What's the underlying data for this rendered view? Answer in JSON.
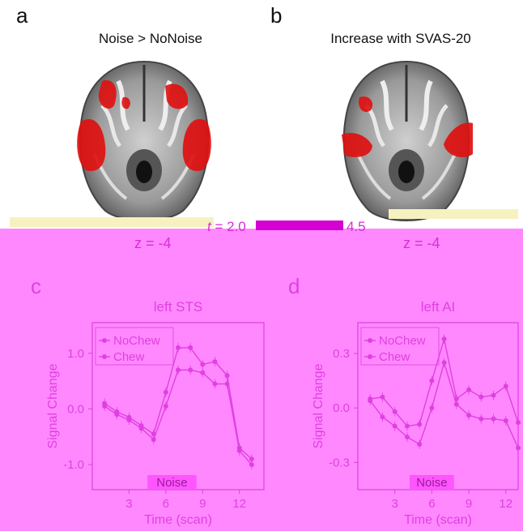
{
  "panels": {
    "a": {
      "letter": "a",
      "title": "Noise > NoNoise",
      "z_label": "z = -4"
    },
    "b": {
      "letter": "b",
      "title": "Increase with SVAS-20",
      "z_label": "z = -4"
    },
    "c": {
      "letter": "c"
    },
    "d": {
      "letter": "d"
    }
  },
  "colorbar": {
    "t_prefix": "t",
    "min_label": "= 2.0",
    "max_label": "4.5"
  },
  "colors": {
    "pink_bg": "#ff88ff",
    "series": "#e040e0",
    "activation": "#e01010"
  },
  "chart_data": [
    {
      "type": "line",
      "title": "left STS",
      "xlabel": "Time (scan)",
      "ylabel": "Signal Change",
      "xlim": [
        0,
        14
      ],
      "ylim": [
        -1.45,
        1.55
      ],
      "xticks": [
        3,
        6,
        9,
        12
      ],
      "yticks": [
        1.0,
        0.0,
        -1.0
      ],
      "ytick_labels": [
        "1.0",
        "0.0",
        "-1.0"
      ],
      "shaded_label": "Noise",
      "shaded_range": [
        4.5,
        8.5
      ],
      "x": [
        1,
        2,
        3,
        4,
        5,
        6,
        7,
        8,
        9,
        10,
        11,
        12,
        13
      ],
      "legend_position": "top-left",
      "series": [
        {
          "name": "NoChew",
          "values": [
            0.1,
            -0.05,
            -0.15,
            -0.3,
            -0.45,
            0.3,
            1.1,
            1.1,
            0.8,
            0.85,
            0.6,
            -0.7,
            -0.9
          ]
        },
        {
          "name": "Chew",
          "values": [
            0.05,
            -0.1,
            -0.2,
            -0.35,
            -0.55,
            0.05,
            0.7,
            0.7,
            0.65,
            0.45,
            0.45,
            -0.75,
            -1.0
          ]
        }
      ]
    },
    {
      "type": "line",
      "title": "left AI",
      "xlabel": "Time (scan)",
      "ylabel": "Signal Change",
      "xlim": [
        0,
        13
      ],
      "ylim": [
        -0.45,
        0.47
      ],
      "xticks": [
        3,
        6,
        9,
        12
      ],
      "yticks": [
        0.3,
        0.0,
        -0.3
      ],
      "ytick_labels": [
        "0.3",
        "0.0",
        "-0.3"
      ],
      "shaded_label": "Noise",
      "shaded_range": [
        4.2,
        7.8
      ],
      "x": [
        1,
        2,
        3,
        4,
        5,
        6,
        7,
        8,
        9,
        10,
        11,
        12,
        13
      ],
      "legend_position": "top-left",
      "series": [
        {
          "name": "NoChew",
          "values": [
            0.05,
            0.06,
            -0.02,
            -0.1,
            -0.09,
            0.15,
            0.38,
            0.05,
            0.1,
            0.06,
            0.07,
            0.12,
            -0.08
          ]
        },
        {
          "name": "Chew",
          "values": [
            0.04,
            -0.05,
            -0.1,
            -0.16,
            -0.2,
            0.0,
            0.25,
            0.02,
            -0.04,
            -0.06,
            -0.06,
            -0.07,
            -0.22
          ]
        }
      ]
    }
  ]
}
